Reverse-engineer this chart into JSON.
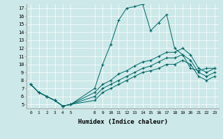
{
  "xlabel": "Humidex (Indice chaleur)",
  "background_color": "#cce8e8",
  "line_color": "#006666",
  "xlim": [
    -0.5,
    23.5
  ],
  "ylim": [
    4.5,
    17.5
  ],
  "xticks": [
    0,
    1,
    2,
    3,
    4,
    5,
    8,
    9,
    10,
    11,
    12,
    13,
    14,
    15,
    16,
    17,
    18,
    19,
    20,
    21,
    22,
    23
  ],
  "yticks": [
    5,
    6,
    7,
    8,
    9,
    10,
    11,
    12,
    13,
    14,
    15,
    16,
    17
  ],
  "series": [
    {
      "x": [
        0,
        1,
        2,
        3,
        4,
        5,
        8,
        9,
        10,
        11,
        12,
        13,
        14,
        15,
        16,
        17,
        18,
        19,
        20,
        21,
        22,
        23
      ],
      "y": [
        7.5,
        6.5,
        6.0,
        5.5,
        4.8,
        5.0,
        7.0,
        10.0,
        12.5,
        15.5,
        17.0,
        17.2,
        17.5,
        14.2,
        15.2,
        16.2,
        12.0,
        11.2,
        9.5,
        9.2,
        9.5,
        9.5
      ]
    },
    {
      "x": [
        0,
        1,
        2,
        3,
        4,
        5,
        8,
        9,
        10,
        11,
        12,
        13,
        14,
        15,
        16,
        17,
        18,
        19,
        20,
        21,
        22,
        23
      ],
      "y": [
        7.5,
        6.5,
        6.0,
        5.5,
        4.8,
        5.0,
        6.5,
        7.5,
        8.0,
        8.8,
        9.2,
        9.8,
        10.3,
        10.5,
        11.0,
        11.5,
        11.5,
        12.0,
        11.2,
        9.5,
        9.0,
        9.5
      ]
    },
    {
      "x": [
        0,
        1,
        2,
        3,
        4,
        5,
        8,
        9,
        10,
        11,
        12,
        13,
        14,
        15,
        16,
        17,
        18,
        19,
        20,
        21,
        22,
        23
      ],
      "y": [
        7.5,
        6.5,
        6.0,
        5.5,
        4.8,
        5.0,
        6.0,
        7.0,
        7.5,
        8.0,
        8.5,
        9.0,
        9.5,
        9.8,
        10.3,
        10.8,
        10.8,
        11.2,
        10.5,
        9.0,
        8.5,
        9.0
      ]
    },
    {
      "x": [
        0,
        1,
        2,
        3,
        4,
        5,
        8,
        9,
        10,
        11,
        12,
        13,
        14,
        15,
        16,
        17,
        18,
        19,
        20,
        21,
        22,
        23
      ],
      "y": [
        7.5,
        6.5,
        6.0,
        5.5,
        4.8,
        5.0,
        5.5,
        6.5,
        7.0,
        7.5,
        8.0,
        8.5,
        9.0,
        9.2,
        9.5,
        10.0,
        10.0,
        10.5,
        10.0,
        8.5,
        8.0,
        8.5
      ]
    }
  ]
}
